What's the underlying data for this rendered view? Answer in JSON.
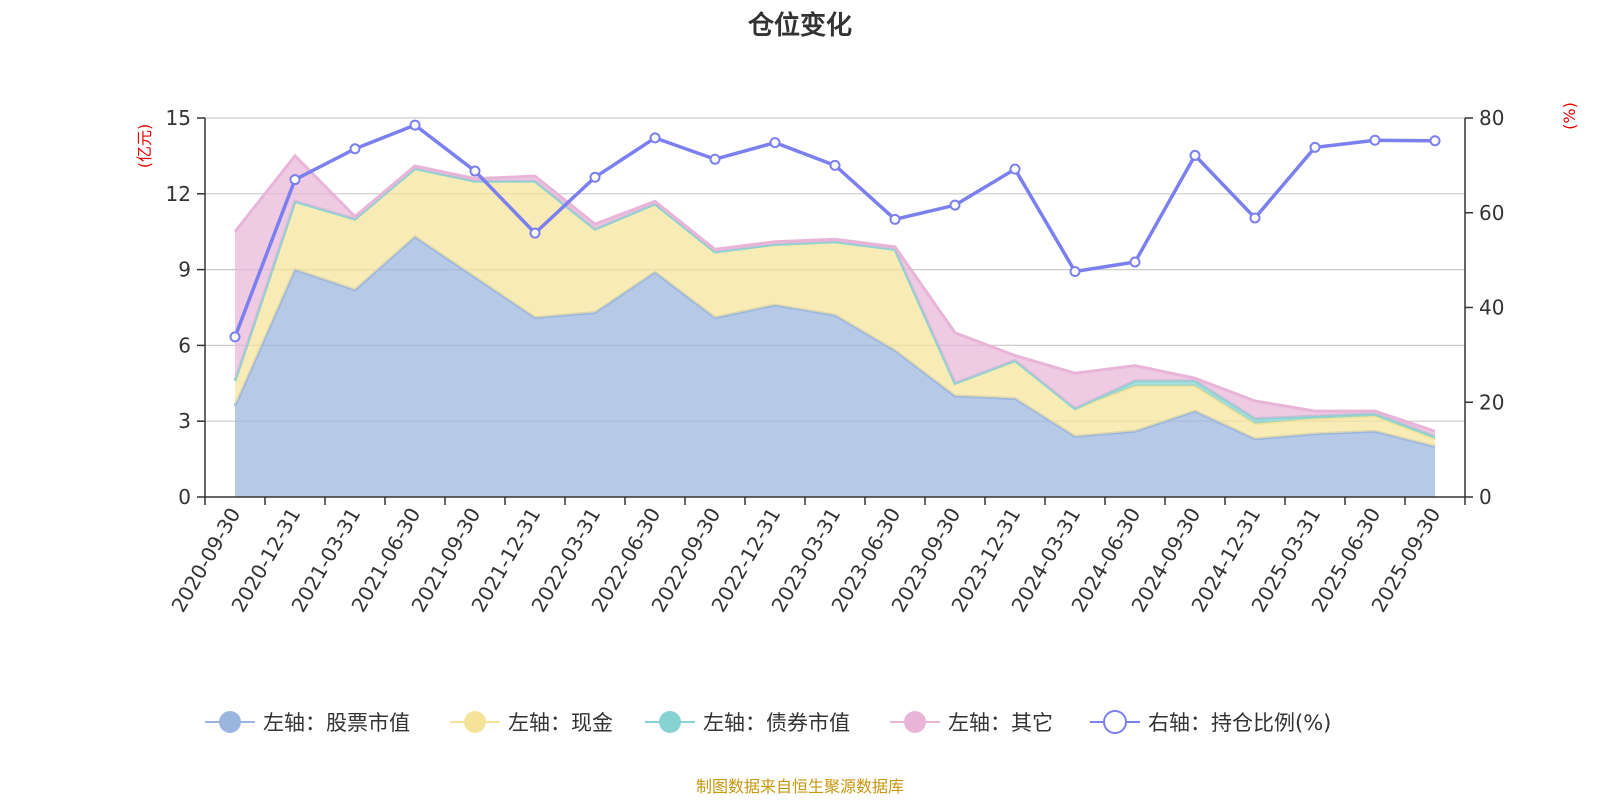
{
  "chart_data": {
    "type": "area",
    "title": "仓位变化",
    "source": "制图数据来自恒生聚源数据库",
    "left_axis": {
      "unit": "(亿元)",
      "ylim": [
        0,
        15
      ],
      "ticks": [
        "0",
        "3",
        "6",
        "9",
        "12",
        "15"
      ]
    },
    "right_axis": {
      "unit": "(%)",
      "ylim": [
        0,
        80
      ],
      "ticks": [
        "0",
        "20",
        "40",
        "60",
        "80"
      ]
    },
    "categories": [
      "2020-09-30",
      "2020-12-31",
      "2021-03-31",
      "2021-06-30",
      "2021-09-30",
      "2021-12-31",
      "2022-03-31",
      "2022-06-30",
      "2022-09-30",
      "2022-12-31",
      "2023-03-31",
      "2023-06-30",
      "2023-09-30",
      "2023-12-31",
      "2024-03-31",
      "2024-06-30",
      "2024-09-30",
      "2024-12-31",
      "2025-03-31",
      "2025-06-30",
      "2025-09-30"
    ],
    "series": [
      {
        "name": "左轴：股票市值",
        "axis": "left",
        "color": "#9ab6df",
        "values": [
          3.6,
          9.0,
          8.2,
          10.3,
          8.7,
          7.1,
          7.3,
          8.9,
          7.1,
          7.6,
          7.2,
          5.8,
          4.0,
          3.9,
          2.4,
          2.6,
          3.4,
          2.3,
          2.5,
          2.6,
          2.0
        ]
      },
      {
        "name": "左轴：现金",
        "axis": "left",
        "color": "#f5e39a",
        "values": [
          1.0,
          2.7,
          2.8,
          2.7,
          3.8,
          5.4,
          3.3,
          2.7,
          2.6,
          2.4,
          2.9,
          4.0,
          0.5,
          1.5,
          1.1,
          1.8,
          1.0,
          0.6,
          0.6,
          0.6,
          0.3
        ]
      },
      {
        "name": "左轴：债券市值",
        "axis": "left",
        "color": "#87d3d3",
        "values": [
          0,
          0,
          0,
          0,
          0,
          0,
          0,
          0,
          0,
          0,
          0,
          0,
          0,
          0,
          0,
          0.2,
          0.2,
          0.2,
          0.1,
          0.1,
          0.1
        ]
      },
      {
        "name": "左轴：其它",
        "axis": "left",
        "color": "#e8b5d8",
        "values": [
          5.9,
          1.8,
          0.1,
          0.1,
          0.1,
          0.2,
          0.2,
          0.1,
          0.1,
          0.1,
          0.1,
          0.1,
          2.0,
          0.2,
          1.4,
          0.6,
          0.1,
          0.7,
          0.2,
          0.1,
          0.2
        ]
      },
      {
        "name": "右轴：持仓比例(%)",
        "axis": "right",
        "color": "#7b7ff0",
        "values": [
          33.8,
          67.0,
          73.5,
          78.5,
          68.8,
          55.7,
          67.5,
          75.8,
          71.3,
          74.8,
          70.0,
          58.6,
          61.6,
          69.2,
          47.6,
          49.6,
          72.1,
          58.9,
          73.8,
          75.3,
          75.2
        ]
      }
    ]
  }
}
